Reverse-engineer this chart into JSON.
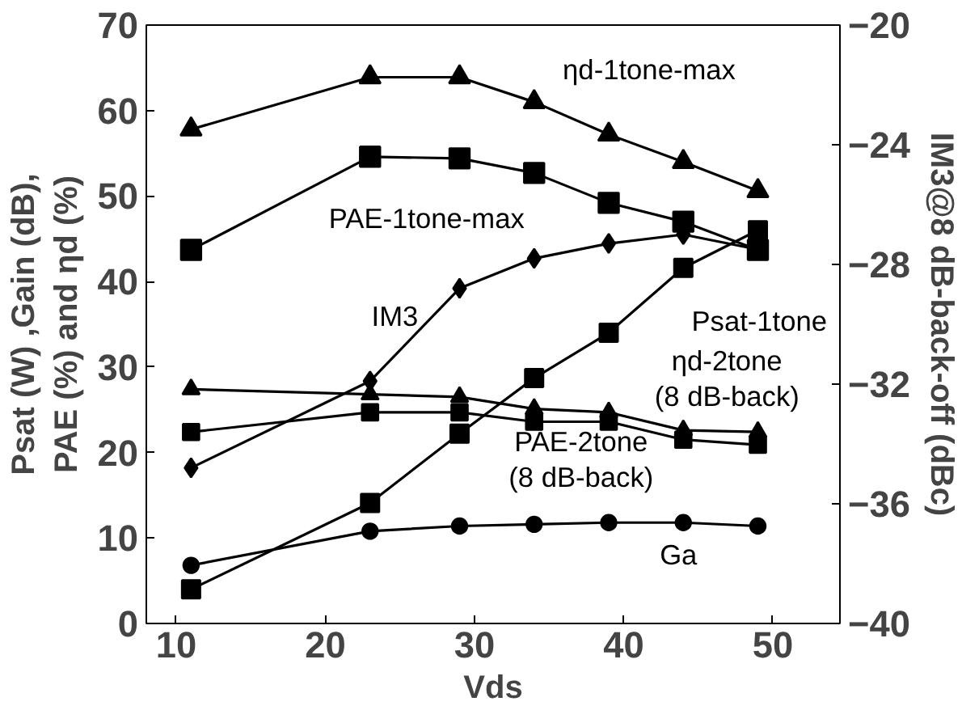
{
  "chart_data": {
    "type": "line",
    "xlabel": "Vds",
    "ylabel": "Psat (W) ,Gain (dB),\nPAE (%) and ηd (%)",
    "y2label": "IM3@8 dB-back-off (dBc)",
    "x": [
      11,
      23,
      29,
      34,
      39,
      44,
      49
    ],
    "series": [
      {
        "name": "ηd-1tone-max",
        "color": "#000000",
        "marker": "triangle",
        "values": [
          57.8,
          63.9,
          63.9,
          61,
          57.2,
          54,
          50.6
        ]
      },
      {
        "name": "PAE-1tone-max",
        "color": "#000000",
        "marker": "square",
        "values": [
          43.7,
          54.6,
          54.4,
          52.7,
          49.2,
          47,
          43.7
        ]
      },
      {
        "name": "IM3",
        "color": "#000000",
        "marker": "diamond",
        "axis": "y2",
        "values": [
          -34.8,
          -31.9,
          -28.8,
          -27.8,
          -27.3,
          -27.0,
          -27.5
        ]
      },
      {
        "name": "Psat-1tone",
        "color": "#000000",
        "marker": "square",
        "values": [
          4.0,
          14.1,
          22.2,
          28.7,
          34.0,
          41.6,
          46.0
        ]
      },
      {
        "name": "ηd-2tone\n(8 dB-back)",
        "color": "#000000",
        "marker": "triangle",
        "values": [
          27.4,
          26.8,
          26.5,
          25.1,
          24.7,
          22.6,
          22.4
        ]
      },
      {
        "name": "PAE-2tone\n(8 dB-back)",
        "color": "#000000",
        "marker": "square",
        "values": [
          22.4,
          24.7,
          24.7,
          23.6,
          23.6,
          21.5,
          20.9
        ]
      },
      {
        "name": "Ga",
        "color": "#000000",
        "marker": "circle",
        "values": [
          6.8,
          10.8,
          11.4,
          11.6,
          11.8,
          11.8,
          11.4
        ]
      }
    ],
    "xlim": [
      8,
      54.5
    ],
    "xticks": [
      10,
      20,
      30,
      40,
      50
    ],
    "ylim": [
      0,
      70
    ],
    "yticks": [
      0,
      10,
      20,
      30,
      40,
      50,
      60,
      70
    ],
    "y2lim": [
      -40,
      -20
    ],
    "y2ticks": [
      -40,
      -36,
      -32,
      -28,
      -24,
      -20
    ],
    "grid": false,
    "line_style": "solid"
  }
}
